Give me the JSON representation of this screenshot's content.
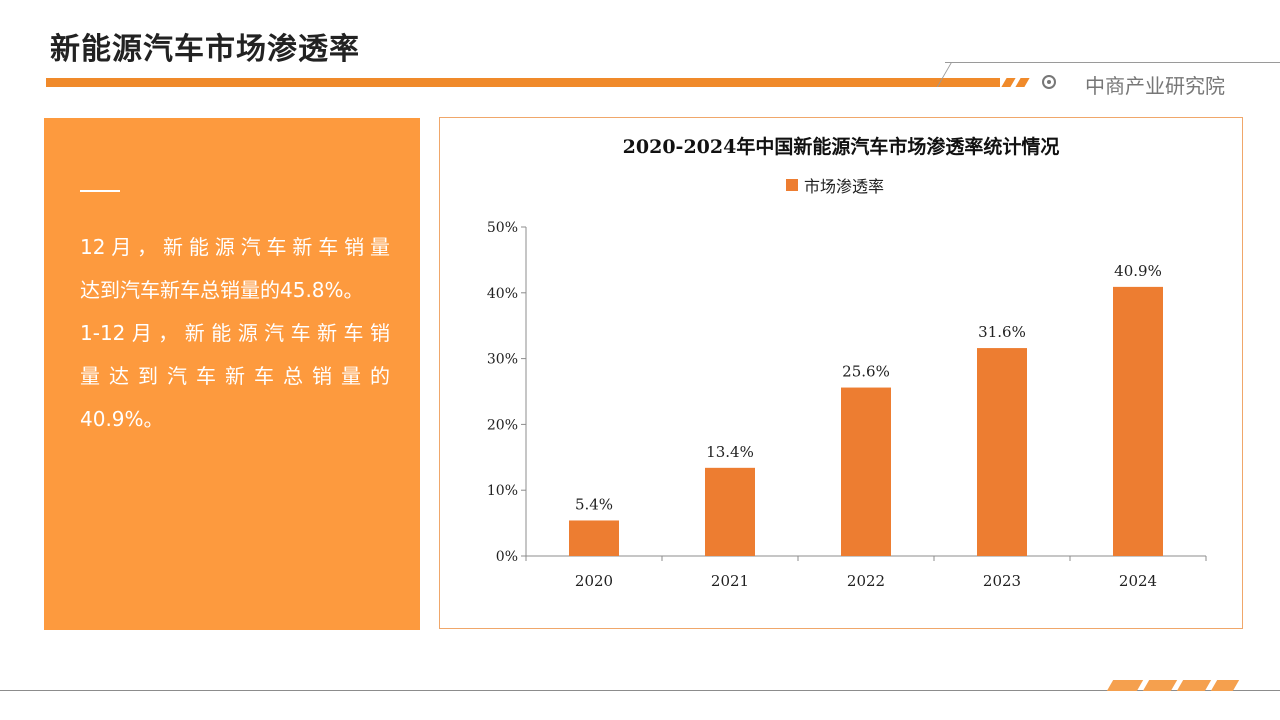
{
  "header": {
    "title": "新能源汽车市场渗透率",
    "org_name": "中商产业研究院"
  },
  "summary": {
    "line1": "12月，新能源汽车新车销量",
    "line2": "达到汽车新车总销量的45.8%。",
    "line3": "1-12月，新能源汽车新车销",
    "line4": "量达到汽车新车总销量的",
    "line5": "40.9%。"
  },
  "chart_data": {
    "type": "bar",
    "title": "2020-2024年中国新能源汽车市场渗透率统计情况",
    "categories": [
      "2020",
      "2021",
      "2022",
      "2023",
      "2024"
    ],
    "series": [
      {
        "name": "市场渗透率",
        "values": [
          5.4,
          13.4,
          25.6,
          31.6,
          40.9
        ],
        "color": "#ed7d31"
      }
    ],
    "data_labels": [
      "5.4%",
      "13.4%",
      "25.6%",
      "31.6%",
      "40.9%"
    ],
    "ylim": [
      0,
      50
    ],
    "yticks": [
      "0%",
      "10%",
      "20%",
      "30%",
      "40%",
      "50%"
    ],
    "legend_position": "top",
    "grid": false
  },
  "colors": {
    "accent": "#f08a2a",
    "panel": "#fd9a3e",
    "bar": "#ed7d31"
  }
}
